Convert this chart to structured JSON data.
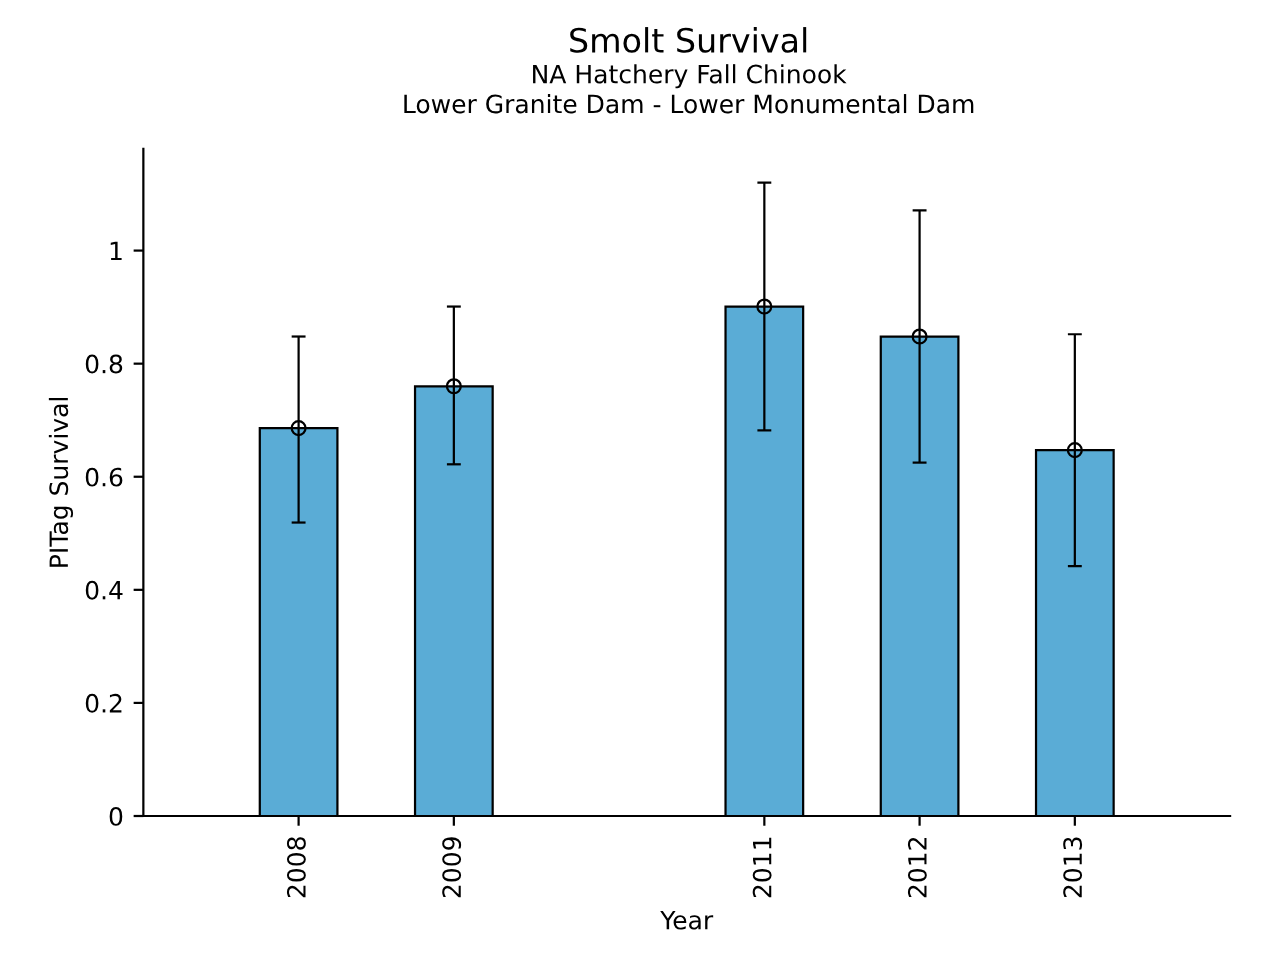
{
  "chart_data": {
    "type": "bar",
    "title": "Smolt Survival",
    "subtitle": "NA Hatchery Fall Chinook\nLower Granite Dam - Lower Monumental Dam",
    "xlabel": "Year",
    "ylabel": "PITag Survival",
    "x": [
      2008,
      2009,
      2011,
      2012,
      2013
    ],
    "series": [
      {
        "color": "#5aacd6",
        "values": [
          0.686,
          0.76,
          0.901,
          0.848,
          0.647
        ],
        "errors": [
          [
            0.519,
            0.848
          ],
          [
            0.622,
            0.901
          ],
          [
            0.682,
            1.12
          ],
          [
            0.625,
            1.071
          ],
          [
            0.442,
            0.852
          ]
        ]
      },
      {
        "type": "scatter",
        "color": "#000000",
        "marker": "circle",
        "values": [
          0.686,
          0.76,
          0.901,
          0.848,
          0.647
        ]
      }
    ],
    "xlim": [
      2007,
      2014
    ],
    "xticks": [
      2008,
      2009,
      2011,
      2012,
      2013
    ],
    "ylim": [
      0,
      1.18
    ],
    "yticks": [
      0,
      0.2,
      0.4,
      0.6,
      0.8,
      1
    ],
    "grid": false,
    "legend": false
  }
}
